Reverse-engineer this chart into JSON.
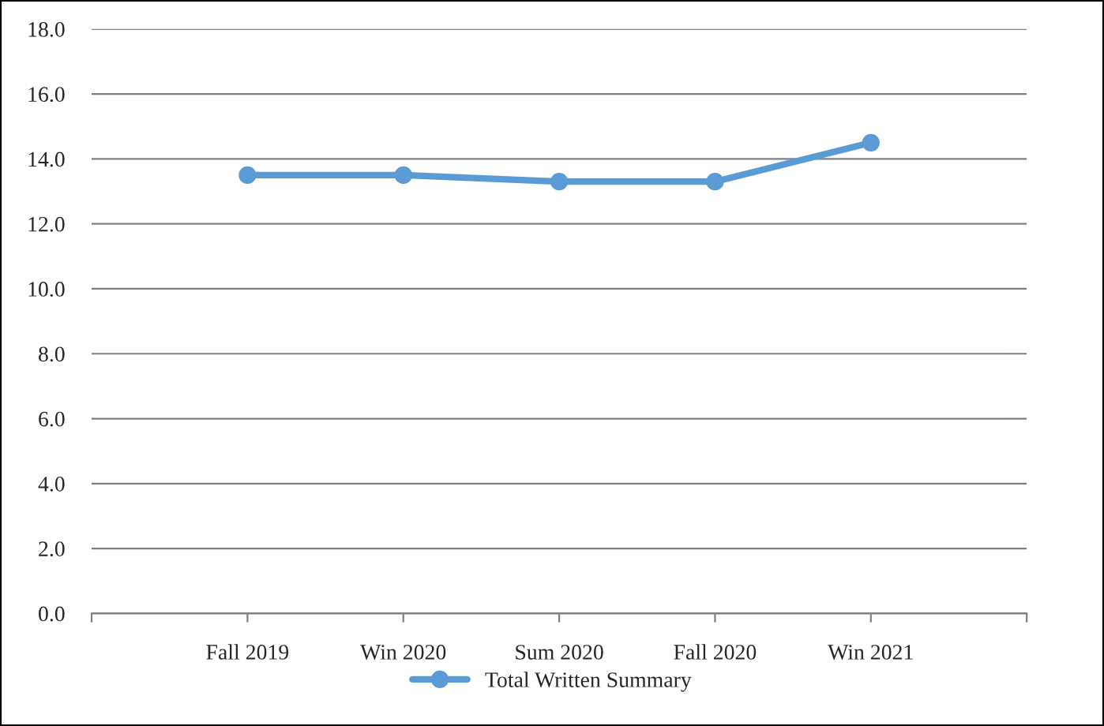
{
  "chart_data": {
    "type": "line",
    "categories": [
      null,
      "Fall 2019",
      "Win 2020",
      "Sum 2020",
      "Fall 2020",
      "Win 2021",
      null
    ],
    "series": [
      {
        "name": "Total Written Summary",
        "color": "#5b9bd5",
        "values": [
          null,
          13.5,
          13.5,
          13.3,
          13.3,
          14.5,
          null
        ]
      }
    ],
    "ylim": [
      0,
      18
    ],
    "yticks": [
      {
        "value": 0,
        "label": "0.0"
      },
      {
        "value": 2,
        "label": "2.0"
      },
      {
        "value": 4,
        "label": "4.0"
      },
      {
        "value": 6,
        "label": "6.0"
      },
      {
        "value": 8,
        "label": "8.0"
      },
      {
        "value": 10,
        "label": "10.0"
      },
      {
        "value": 12,
        "label": "12.0"
      },
      {
        "value": 14,
        "label": "14.0"
      },
      {
        "value": 16,
        "label": "16.0"
      },
      {
        "value": 18,
        "label": "18.0"
      }
    ],
    "grid": "y",
    "legend": "bottom",
    "marker": "circle",
    "line_style": "solid"
  }
}
